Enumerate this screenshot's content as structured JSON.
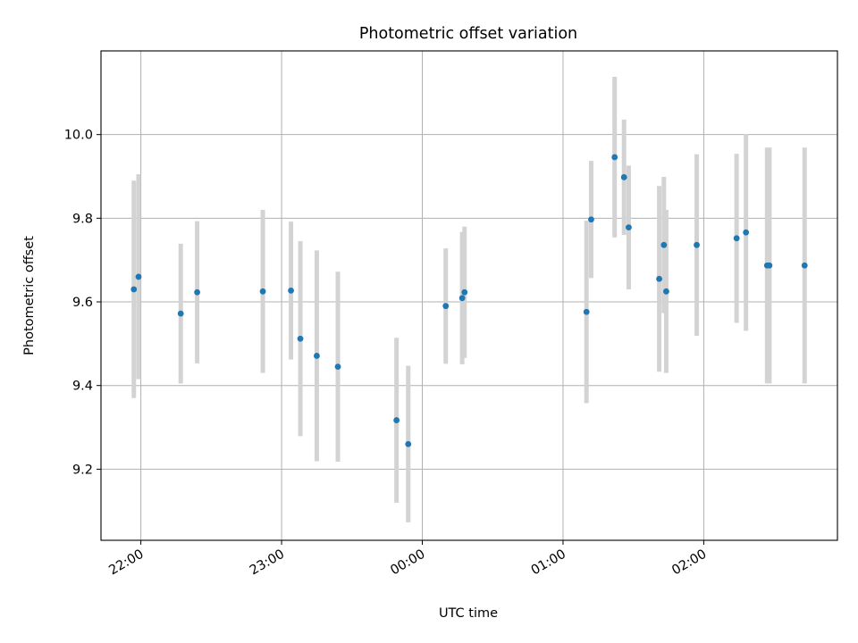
{
  "chart_data": {
    "type": "scatter",
    "title": "Photometric offset variation",
    "xlabel": "UTC time",
    "ylabel": "Photometric offset",
    "x_format": "HH:MM",
    "xlim": [
      "21:43",
      "02:57"
    ],
    "ylim": [
      9.03,
      10.2
    ],
    "x_ticks": [
      "22:00",
      "23:00",
      "00:00",
      "01:00",
      "02:00"
    ],
    "y_ticks": [
      9.2,
      9.4,
      9.6,
      9.8,
      10.0
    ],
    "y_tick_labels": [
      "9.2",
      "9.4",
      "9.6",
      "9.8",
      "10.0"
    ],
    "grid": true,
    "marker_color": "#1f77b4",
    "errorbar_color": "#d3d3d3",
    "points": [
      {
        "x": "21:57",
        "y": 9.63,
        "err": 0.26
      },
      {
        "x": "21:59",
        "y": 9.66,
        "err": 0.245
      },
      {
        "x": "22:17",
        "y": 9.572,
        "err": 0.167
      },
      {
        "x": "22:24",
        "y": 9.623,
        "err": 0.17
      },
      {
        "x": "22:52",
        "y": 9.625,
        "err": 0.195
      },
      {
        "x": "23:04",
        "y": 9.627,
        "err": 0.165
      },
      {
        "x": "23:08",
        "y": 9.512,
        "err": 0.233
      },
      {
        "x": "23:15",
        "y": 9.471,
        "err": 0.252
      },
      {
        "x": "23:24",
        "y": 9.445,
        "err": 0.227
      },
      {
        "x": "23:49",
        "y": 9.317,
        "err": 0.197
      },
      {
        "x": "23:54",
        "y": 9.26,
        "err": 0.187
      },
      {
        "x": "00:10",
        "y": 9.59,
        "err": 0.138
      },
      {
        "x": "00:17",
        "y": 9.609,
        "err": 0.158
      },
      {
        "x": "00:18",
        "y": 9.623,
        "err": 0.157
      },
      {
        "x": "01:10",
        "y": 9.576,
        "err": 0.218
      },
      {
        "x": "01:12",
        "y": 9.797,
        "err": 0.14
      },
      {
        "x": "01:22",
        "y": 9.946,
        "err": 0.192
      },
      {
        "x": "01:26",
        "y": 9.898,
        "err": 0.138
      },
      {
        "x": "01:28",
        "y": 9.778,
        "err": 0.148
      },
      {
        "x": "01:41",
        "y": 9.655,
        "err": 0.222
      },
      {
        "x": "01:43",
        "y": 9.736,
        "err": 0.163
      },
      {
        "x": "01:44",
        "y": 9.625,
        "err": 0.195
      },
      {
        "x": "01:57",
        "y": 9.736,
        "err": 0.217
      },
      {
        "x": "02:14",
        "y": 9.752,
        "err": 0.202
      },
      {
        "x": "02:18",
        "y": 9.766,
        "err": 0.235
      },
      {
        "x": "02:27",
        "y": 9.687,
        "err": 0.282
      },
      {
        "x": "02:28",
        "y": 9.687,
        "err": 0.282
      },
      {
        "x": "02:43",
        "y": 9.687,
        "err": 0.282
      }
    ]
  }
}
